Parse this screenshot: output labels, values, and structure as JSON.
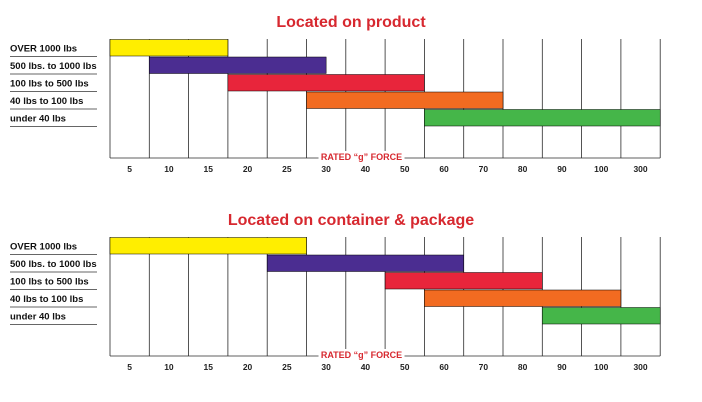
{
  "chart_data": [
    {
      "type": "bar",
      "orientation": "horizontal-range",
      "title": "Located on product",
      "xlabel": "RATED “g” FORCE",
      "x_ticks": [
        "5",
        "10",
        "15",
        "20",
        "25",
        "30",
        "40",
        "50",
        "60",
        "70",
        "80",
        "90",
        "100",
        "300"
      ],
      "categories": [
        "OVER 1000 lbs",
        "500 lbs. to 1000 lbs",
        "100 lbs to 500 lbs",
        "40 lbs to 100 lbs",
        "under 40 lbs"
      ],
      "ranges": [
        {
          "category": "OVER 1000 lbs",
          "start_tick_index": 0,
          "end_tick_index": 3,
          "color": "#ffee00"
        },
        {
          "category": "500 lbs. to 1000 lbs",
          "start_tick_index": 1,
          "end_tick_index": 5.5,
          "color": "#4b2d91"
        },
        {
          "category": "100 lbs to 500 lbs",
          "start_tick_index": 3,
          "end_tick_index": 8,
          "color": "#e8253b"
        },
        {
          "category": "40 lbs to 100 lbs",
          "start_tick_index": 5,
          "end_tick_index": 10,
          "color": "#f26b21"
        },
        {
          "category": "under 40 lbs",
          "start_tick_index": 8,
          "end_tick_index": 14,
          "color": "#45b649"
        }
      ],
      "grid": true
    },
    {
      "type": "bar",
      "orientation": "horizontal-range",
      "title": "Located on container & package",
      "xlabel": "RATED “g” FORCE",
      "x_ticks": [
        "5",
        "10",
        "15",
        "20",
        "25",
        "30",
        "40",
        "50",
        "60",
        "70",
        "80",
        "90",
        "100",
        "300"
      ],
      "categories": [
        "OVER 1000 lbs",
        "500 lbs. to 1000 lbs",
        "100 lbs to 500 lbs",
        "40 lbs to 100 lbs",
        "under 40 lbs"
      ],
      "ranges": [
        {
          "category": "OVER 1000 lbs",
          "start_tick_index": 0,
          "end_tick_index": 5,
          "color": "#ffee00"
        },
        {
          "category": "500 lbs. to 1000 lbs",
          "start_tick_index": 4,
          "end_tick_index": 9,
          "color": "#4b2d91"
        },
        {
          "category": "100 lbs to 500 lbs",
          "start_tick_index": 7,
          "end_tick_index": 11,
          "color": "#e8253b"
        },
        {
          "category": "40 lbs to 100 lbs",
          "start_tick_index": 8,
          "end_tick_index": 13,
          "color": "#f26b21"
        },
        {
          "category": "under 40 lbs",
          "start_tick_index": 11,
          "end_tick_index": 14,
          "color": "#45b649"
        }
      ],
      "grid": true
    }
  ]
}
